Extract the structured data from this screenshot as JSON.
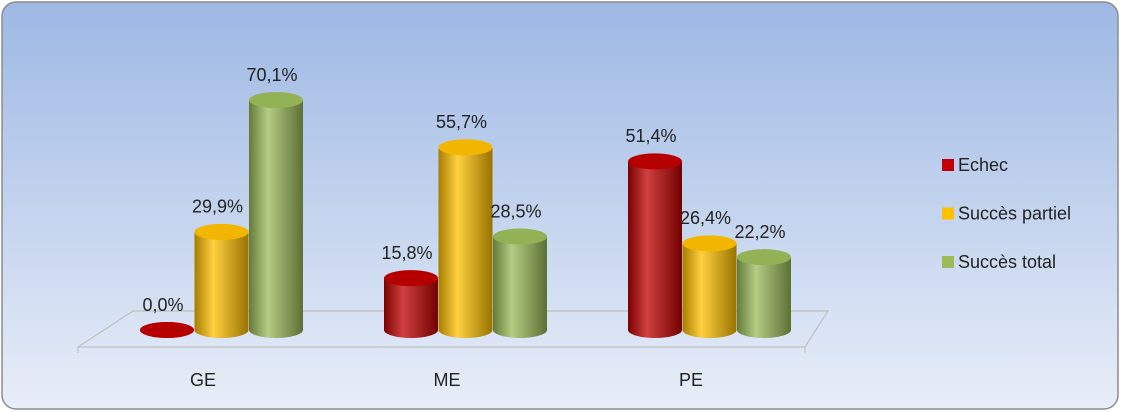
{
  "chart_data": {
    "type": "bar",
    "categories": [
      "GE",
      "ME",
      "PE"
    ],
    "series": [
      {
        "name": "Echec",
        "color": "#c00000",
        "values": [
          0.0,
          15.8,
          51.4
        ],
        "value_labels": [
          "0,0%",
          "15,8%",
          "51,4%"
        ]
      },
      {
        "name": "Succès partiel",
        "color": "#ffc000",
        "values": [
          29.9,
          55.7,
          26.4
        ],
        "value_labels": [
          "29,9%",
          "55,7%",
          "26,4%"
        ]
      },
      {
        "name": "Succès total",
        "color": "#9bbb59",
        "values": [
          70.1,
          28.5,
          22.2
        ],
        "value_labels": [
          "70,1%",
          "28,5%",
          "22,2%"
        ]
      }
    ],
    "legend": "right"
  }
}
